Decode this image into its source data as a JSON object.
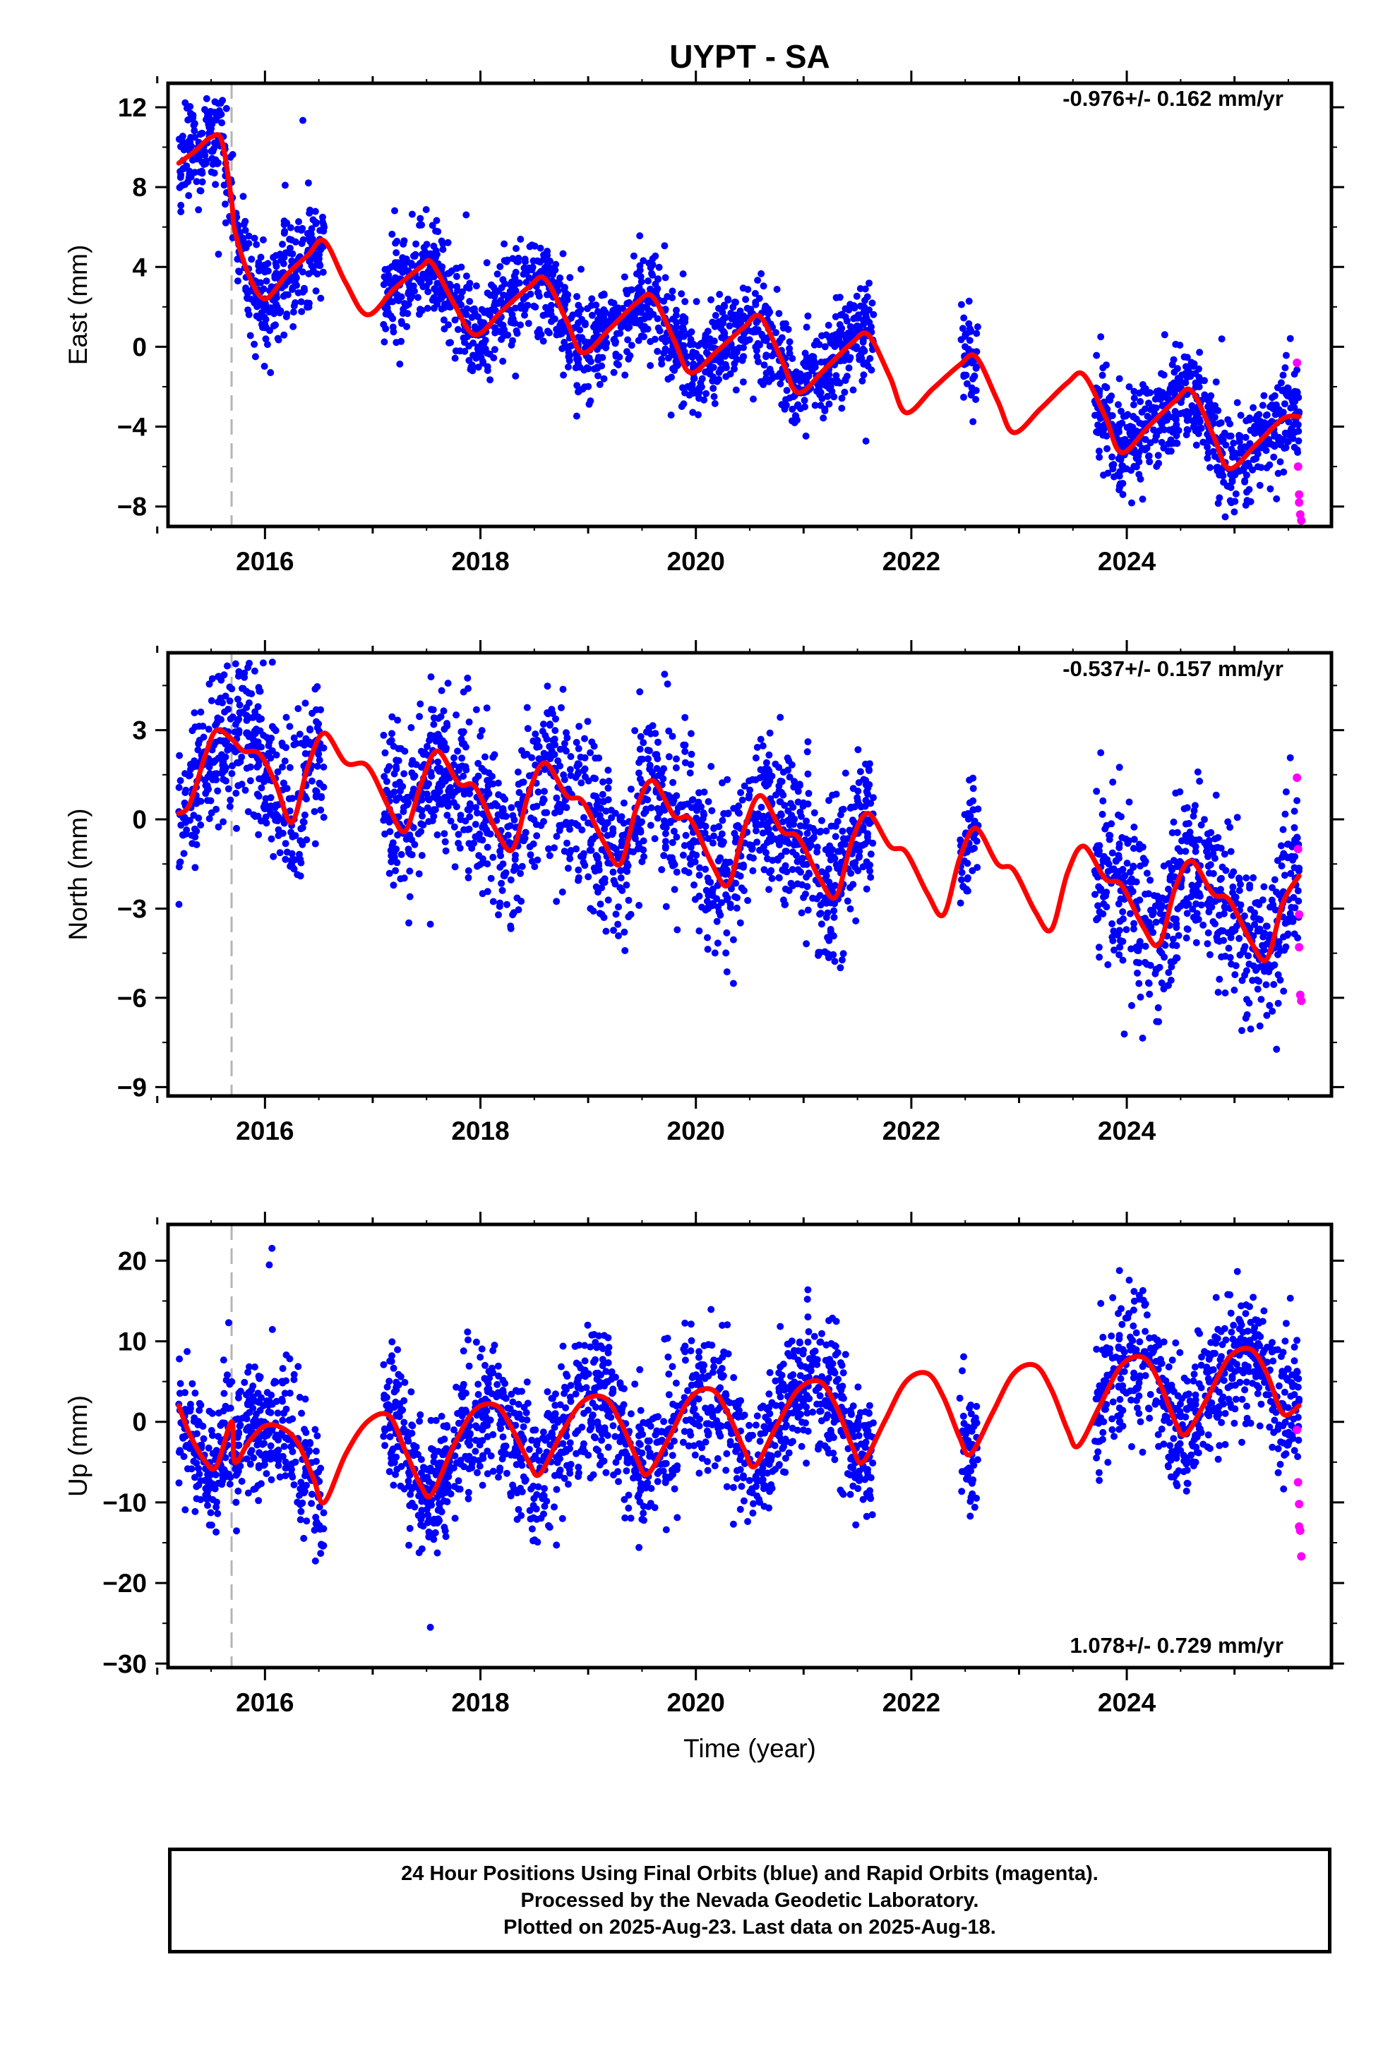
{
  "figure": {
    "title": "UYPT - SA",
    "x_axis_label": "Time (year)",
    "footer": [
      "24 Hour Positions Using Final Orbits (blue) and Rapid Orbits (magenta).",
      "Processed by the Nevada Geodetic Laboratory.",
      "Plotted on 2025-Aug-23. Last data on 2025-Aug-18."
    ],
    "colors": {
      "final_orbits": "#0000ff",
      "rapid_orbits": "#ff00ff",
      "model_fit": "#ff0000",
      "equipment_change": "#b4b4b4"
    }
  },
  "chart_data": [
    {
      "type": "scatter",
      "panel": "east",
      "ylabel": "East (mm)",
      "rate_label": "-0.976+/- 0.162 mm/yr",
      "xlim": [
        2015.1,
        2025.9
      ],
      "ylim": [
        -9.0,
        13.2
      ],
      "xticks": [
        2016,
        2018,
        2020,
        2022,
        2024
      ],
      "yticks": [
        -8,
        -4,
        0,
        4,
        8,
        12
      ],
      "equipment_change_x": 2015.69,
      "final_orbit_segments": [
        [
          2015.2,
          2016.55
        ],
        [
          2017.1,
          2021.65
        ],
        [
          2022.45,
          2022.62
        ],
        [
          2023.7,
          2025.6
        ]
      ],
      "rapid_orbits": {
        "x": [
          2025.58,
          2025.59,
          2025.6,
          2025.6,
          2025.61,
          2025.62
        ],
        "y": [
          -0.8,
          -6.0,
          -7.4,
          -7.8,
          -8.4,
          -8.7
        ]
      },
      "model_fit": {
        "x": [
          2015.2,
          2015.35,
          2015.5,
          2015.6,
          2015.69,
          2015.72,
          2015.85,
          2016.0,
          2016.2,
          2016.4,
          2016.55,
          2016.75,
          2016.95,
          2017.2,
          2017.45,
          2017.55,
          2017.75,
          2017.95,
          2018.2,
          2018.45,
          2018.6,
          2018.8,
          2018.95,
          2019.2,
          2019.45,
          2019.6,
          2019.8,
          2019.95,
          2020.2,
          2020.45,
          2020.6,
          2020.8,
          2020.95,
          2021.2,
          2021.45,
          2021.6,
          2021.8,
          2021.95,
          2022.2,
          2022.45,
          2022.6,
          2022.8,
          2022.95,
          2023.2,
          2023.45,
          2023.6,
          2023.8,
          2023.95,
          2024.2,
          2024.45,
          2024.6,
          2024.8,
          2024.95,
          2025.2,
          2025.45,
          2025.6
        ],
        "y": [
          9.2,
          9.8,
          10.5,
          10.3,
          7.3,
          5.8,
          3.6,
          2.4,
          3.6,
          4.6,
          5.3,
          3.2,
          1.6,
          2.9,
          4.0,
          4.2,
          2.2,
          0.6,
          1.8,
          3.0,
          3.4,
          1.3,
          -0.3,
          0.9,
          2.2,
          2.5,
          0.3,
          -1.3,
          -0.2,
          1.0,
          1.5,
          -0.7,
          -2.3,
          -1.1,
          0.2,
          0.6,
          -1.5,
          -3.3,
          -2.1,
          -0.9,
          -0.5,
          -2.7,
          -4.3,
          -3.1,
          -1.8,
          -1.4,
          -3.5,
          -5.3,
          -4.0,
          -2.7,
          -2.2,
          -4.4,
          -6.1,
          -4.9,
          -3.6,
          -3.5
        ]
      }
    },
    {
      "type": "scatter",
      "panel": "north",
      "ylabel": "North (mm)",
      "rate_label": "-0.537+/- 0.157 mm/yr",
      "xlim": [
        2015.1,
        2025.9
      ],
      "ylim": [
        -9.3,
        5.6
      ],
      "xticks": [
        2016,
        2018,
        2020,
        2022,
        2024
      ],
      "yticks": [
        -9,
        -6,
        -3,
        0,
        3
      ],
      "equipment_change_x": 2015.69,
      "final_orbit_segments": [
        [
          2015.2,
          2016.55
        ],
        [
          2017.1,
          2021.65
        ],
        [
          2022.45,
          2022.62
        ],
        [
          2023.7,
          2025.6
        ]
      ],
      "rapid_orbits": {
        "x": [
          2025.58,
          2025.59,
          2025.6,
          2025.6,
          2025.61,
          2025.62
        ],
        "y": [
          1.4,
          -1.0,
          -3.2,
          -4.3,
          -5.9,
          -6.1
        ]
      },
      "model_fit": {
        "x": [
          2015.2,
          2015.3,
          2015.45,
          2015.55,
          2015.69,
          2015.8,
          2015.95,
          2016.1,
          2016.25,
          2016.4,
          2016.55,
          2016.75,
          2016.95,
          2017.15,
          2017.3,
          2017.45,
          2017.6,
          2017.8,
          2017.95,
          2018.15,
          2018.3,
          2018.45,
          2018.6,
          2018.8,
          2018.95,
          2019.15,
          2019.3,
          2019.45,
          2019.6,
          2019.8,
          2019.95,
          2020.15,
          2020.3,
          2020.45,
          2020.6,
          2020.8,
          2020.95,
          2021.15,
          2021.3,
          2021.45,
          2021.6,
          2021.8,
          2021.95,
          2022.15,
          2022.3,
          2022.45,
          2022.6,
          2022.8,
          2022.95,
          2023.15,
          2023.3,
          2023.45,
          2023.6,
          2023.8,
          2023.95,
          2024.15,
          2024.3,
          2024.45,
          2024.6,
          2024.8,
          2024.95,
          2025.15,
          2025.3,
          2025.45,
          2025.6
        ],
        "y": [
          0.2,
          0.5,
          2.2,
          3.0,
          2.7,
          2.3,
          2.2,
          1.2,
          -0.1,
          1.8,
          2.9,
          1.9,
          1.8,
          0.4,
          -0.4,
          1.2,
          2.3,
          1.2,
          1.1,
          -0.4,
          -1.0,
          0.9,
          1.9,
          0.8,
          0.6,
          -0.8,
          -1.5,
          0.4,
          1.3,
          0.1,
          0.0,
          -1.5,
          -2.2,
          -0.3,
          0.8,
          -0.4,
          -0.6,
          -2.0,
          -2.6,
          -0.7,
          0.2,
          -0.9,
          -1.1,
          -2.5,
          -3.2,
          -1.3,
          -0.3,
          -1.5,
          -1.7,
          -3.1,
          -3.7,
          -1.8,
          -0.9,
          -2.0,
          -2.2,
          -3.6,
          -4.2,
          -2.3,
          -1.4,
          -2.5,
          -2.7,
          -4.1,
          -4.7,
          -2.8,
          -1.9
        ]
      }
    },
    {
      "type": "scatter",
      "panel": "up",
      "ylabel": "Up (mm)",
      "rate_label": "1.078+/- 0.729 mm/yr",
      "xlim": [
        2015.1,
        2025.9
      ],
      "ylim": [
        -30.5,
        24.5
      ],
      "xticks": [
        2016,
        2018,
        2020,
        2022,
        2024
      ],
      "yticks": [
        -30,
        -20,
        -10,
        0,
        10,
        20
      ],
      "equipment_change_x": 2015.69,
      "final_orbit_segments": [
        [
          2015.2,
          2016.55
        ],
        [
          2017.1,
          2021.65
        ],
        [
          2022.45,
          2022.62
        ],
        [
          2023.7,
          2025.6
        ]
      ],
      "rapid_orbits": {
        "x": [
          2025.58,
          2025.59,
          2025.6,
          2025.6,
          2025.61,
          2025.62
        ],
        "y": [
          -1.0,
          -7.5,
          -10.2,
          -13.0,
          -13.5,
          -16.7
        ]
      },
      "model_fit": {
        "x": [
          2015.2,
          2015.3,
          2015.45,
          2015.55,
          2015.69,
          2015.72,
          2015.85,
          2016.0,
          2016.15,
          2016.3,
          2016.45,
          2016.55,
          2016.75,
          2016.95,
          2017.15,
          2017.3,
          2017.45,
          2017.55,
          2017.75,
          2017.95,
          2018.15,
          2018.3,
          2018.45,
          2018.55,
          2018.75,
          2018.95,
          2019.15,
          2019.3,
          2019.45,
          2019.55,
          2019.75,
          2019.95,
          2020.15,
          2020.3,
          2020.45,
          2020.55,
          2020.75,
          2020.95,
          2021.15,
          2021.3,
          2021.45,
          2021.55,
          2021.75,
          2021.95,
          2022.15,
          2022.3,
          2022.45,
          2022.55,
          2022.75,
          2022.95,
          2023.15,
          2023.3,
          2023.45,
          2023.55,
          2023.75,
          2023.95,
          2024.15,
          2024.3,
          2024.45,
          2024.55,
          2024.75,
          2024.95,
          2025.15,
          2025.3,
          2025.45,
          2025.6
        ],
        "y": [
          2.0,
          -1.5,
          -5.0,
          -5.5,
          0.0,
          -5.0,
          -2.5,
          -0.5,
          -0.7,
          -2.5,
          -7.0,
          -10.0,
          -4.0,
          0.0,
          0.8,
          -3.5,
          -8.0,
          -9.0,
          -3.0,
          1.5,
          2.0,
          -1.0,
          -5.0,
          -6.5,
          -1.5,
          2.5,
          3.0,
          0.0,
          -4.5,
          -6.5,
          -2.0,
          3.0,
          4.0,
          1.0,
          -3.5,
          -5.5,
          -0.5,
          4.0,
          5.0,
          2.0,
          -3.0,
          -5.0,
          0.0,
          5.0,
          6.0,
          3.0,
          -2.0,
          -4.0,
          1.0,
          6.0,
          7.0,
          4.0,
          -1.0,
          -3.0,
          2.0,
          7.0,
          8.0,
          5.0,
          0.0,
          -1.5,
          3.0,
          8.0,
          9.0,
          6.0,
          1.0,
          2.0
        ]
      }
    }
  ]
}
